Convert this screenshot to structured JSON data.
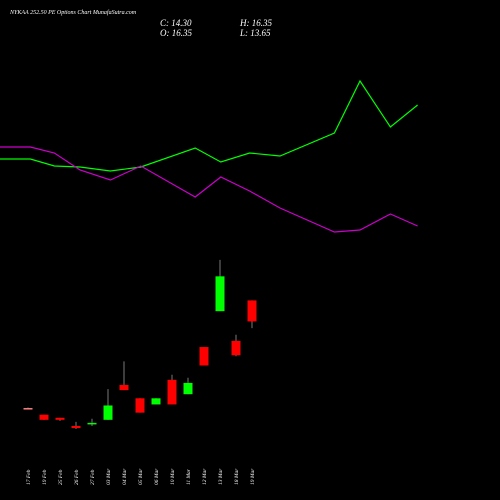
{
  "chart_data": {
    "type": "candlestick",
    "title": "NYKAA 252.50 PE Options Chart MunafaSutra.com",
    "stats": [
      "C: 14.30",
      "H: 16.35",
      "O: 16.35",
      "L: 13.65"
    ],
    "categories": [
      "17 Feb",
      "19 Feb",
      "25 Feb",
      "26 Feb",
      "27 Feb",
      "03 Mar",
      "04 Mar",
      "05 Mar",
      "06 Mar",
      "10 Mar",
      "11 Mar",
      "12 Mar",
      "13 Mar",
      "18 Mar",
      "19 Mar"
    ],
    "open": [
      5.85,
      5.2,
      4.9,
      4.1,
      4.3,
      4.7,
      8.1,
      6.8,
      6.2,
      8.6,
      7.2,
      11.8,
      15.3,
      12.4,
      16.35
    ],
    "high": [
      5.9,
      5.2,
      4.9,
      4.5,
      4.8,
      7.7,
      10.4,
      6.8,
      6.8,
      9.1,
      8.8,
      11.8,
      20.3,
      13.0,
      16.35
    ],
    "low": [
      5.8,
      4.7,
      4.6,
      3.8,
      4.1,
      4.7,
      7.6,
      5.4,
      6.2,
      6.2,
      7.2,
      10.0,
      15.3,
      10.9,
      13.65
    ],
    "close": [
      5.85,
      4.7,
      4.7,
      3.9,
      4.4,
      6.1,
      7.6,
      5.4,
      6.8,
      6.2,
      8.3,
      10.0,
      18.7,
      11.0,
      14.3
    ],
    "up_color": "#00ff00",
    "down_color": "#ff0000",
    "flat_color": "#ff8080",
    "ylim": [
      0,
      40
    ],
    "lines": {
      "x": [
        0,
        1.9,
        3.4,
        5,
        6.9,
        8.8,
        12.2,
        13.8,
        15.6,
        17.5,
        20.9,
        22.5,
        24.4,
        26.1
      ],
      "xlim": [
        0,
        31.25
      ],
      "y2lim": [
        0,
        100
      ],
      "series": [
        {
          "color": "#00ff00",
          "axis": "y2",
          "values": [
            68.2,
            68.2,
            66.8,
            66.6,
            65.8,
            66.6,
            70.4,
            67.6,
            69.4,
            68.8,
            73.4,
            83.8,
            74.6,
            79
          ]
        },
        {
          "color": "#cc00cc",
          "axis": "y2",
          "values": [
            70.6,
            70.6,
            69.4,
            66,
            64,
            66.8,
            60.6,
            64.6,
            61.8,
            58.4,
            53.6,
            54,
            57.2,
            54.8
          ]
        }
      ]
    }
  }
}
